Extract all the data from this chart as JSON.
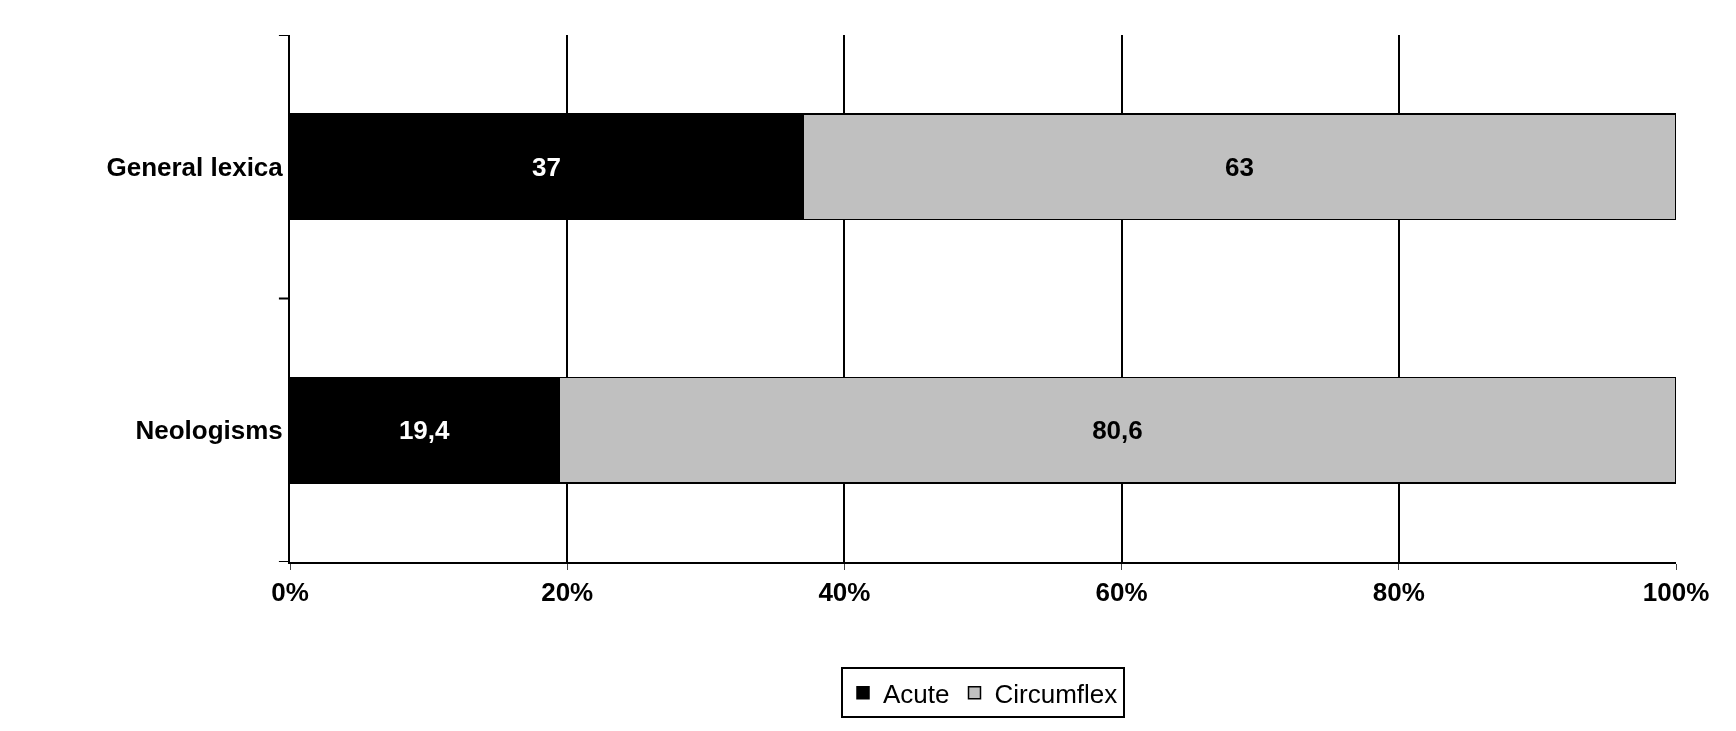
{
  "chart_data": {
    "type": "bar",
    "orientation": "horizontal",
    "stacked": true,
    "categories": [
      "General lexica",
      "Neologisms"
    ],
    "series": [
      {
        "name": "Acute",
        "color": "#000000",
        "values": [
          37,
          19.4
        ],
        "value_labels": [
          "37",
          "19,4"
        ]
      },
      {
        "name": "Circumflex",
        "color": "#c0c0c0",
        "values": [
          63,
          80.6
        ],
        "value_labels": [
          "63",
          "80,6"
        ]
      }
    ],
    "xlim": [
      0,
      100
    ],
    "xticks": [
      {
        "value": 0,
        "label": "0%"
      },
      {
        "value": 20,
        "label": "20%"
      },
      {
        "value": 40,
        "label": "40%"
      },
      {
        "value": 60,
        "label": "60%"
      },
      {
        "value": 80,
        "label": "80%"
      },
      {
        "value": 100,
        "label": "100%"
      }
    ],
    "grid": "x",
    "legend": "bottom"
  }
}
